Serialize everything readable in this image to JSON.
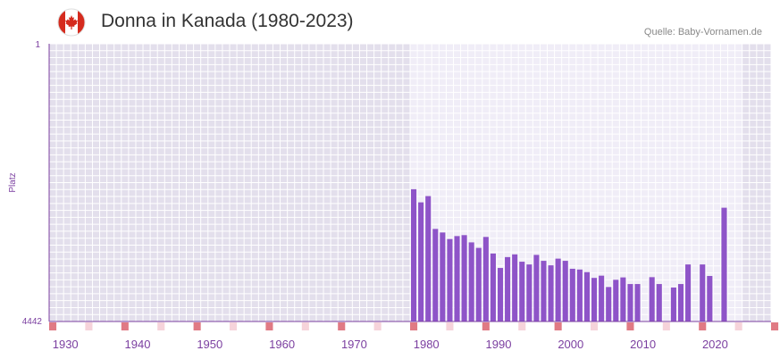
{
  "header": {
    "title": "Donna in Kanada (1980-2023)",
    "source": "Quelle: Baby-Vornamen.de",
    "flag_icon": "canada-flag-icon"
  },
  "colors": {
    "bar": "#8e54c8",
    "plot_bg_outer": "#e3dfec",
    "plot_bg_inner": "#f0edf7",
    "axis": "#7b3fa0",
    "tick_label": "#7b3fa0",
    "decade_marker": "#e07a84",
    "halfdecade_marker": "#f6d3da",
    "flag_red": "#d52b1e"
  },
  "chart_data": {
    "type": "bar",
    "title": "Donna in Kanada (1980-2023)",
    "xlabel": "",
    "ylabel": "Platz",
    "y_axis_inverted": true,
    "ylim": [
      1,
      4442
    ],
    "y_tick_labels": [
      "1",
      "4442"
    ],
    "xlim": [
      1928,
      2028
    ],
    "x_tick_labels": [
      "1930",
      "1940",
      "1950",
      "1960",
      "1970",
      "1980",
      "1990",
      "2000",
      "2010",
      "2020"
    ],
    "highlight_range": [
      1978,
      2023
    ],
    "x": [
      1978,
      1979,
      1980,
      1981,
      1982,
      1983,
      1984,
      1985,
      1986,
      1987,
      1988,
      1989,
      1990,
      1991,
      1992,
      1993,
      1994,
      1995,
      1996,
      1997,
      1998,
      1999,
      2000,
      2001,
      2002,
      2003,
      2004,
      2005,
      2006,
      2007,
      2008,
      2009,
      2011,
      2012,
      2014,
      2015,
      2016,
      2018,
      2019,
      2021
    ],
    "values": [
      2327,
      2537,
      2437,
      2962,
      3019,
      3123,
      3076,
      3061,
      3177,
      3265,
      3090,
      3355,
      3586,
      3412,
      3369,
      3486,
      3530,
      3377,
      3472,
      3544,
      3437,
      3472,
      3599,
      3611,
      3653,
      3745,
      3709,
      3890,
      3775,
      3737,
      3843,
      3843,
      3733,
      3843,
      3898,
      3843,
      3530,
      3530,
      3714,
      2623
    ]
  }
}
